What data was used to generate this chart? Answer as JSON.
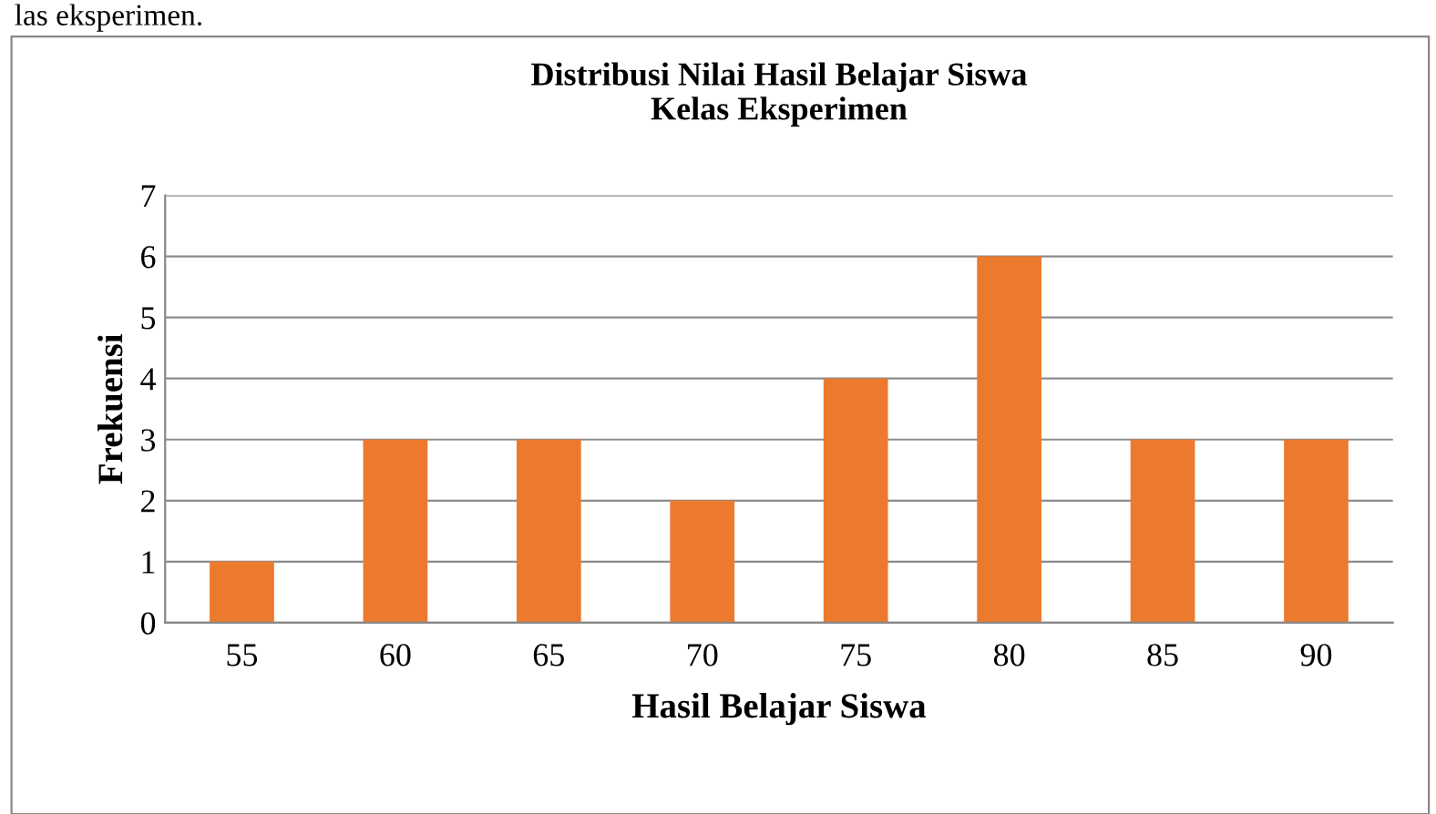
{
  "chart_data": {
    "type": "bar",
    "title": "Distribusi Nilai Hasil Belajar Siswa\nKelas Eksperimen",
    "xlabel": "Hasil Belajar Siswa",
    "ylabel": "Frekuensi",
    "annotations": [
      "las eksperimen."
    ],
    "categories": [
      "55",
      "60",
      "65",
      "70",
      "75",
      "80",
      "85",
      "90"
    ],
    "values": [
      1,
      3,
      3,
      2,
      4,
      6,
      3,
      3
    ],
    "color": "#ec7a2e",
    "ylim": [
      0,
      7
    ],
    "yticks": [
      0,
      1,
      2,
      3,
      4,
      5,
      6,
      7
    ],
    "grid": "y",
    "legend": false
  }
}
